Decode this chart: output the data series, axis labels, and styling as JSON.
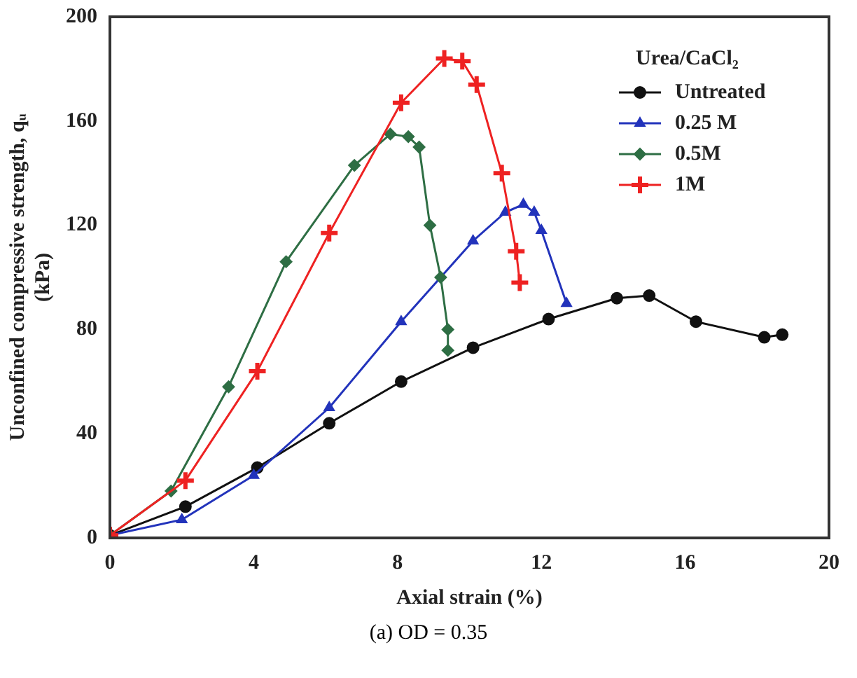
{
  "chart_data": {
    "type": "line",
    "xlabel": "Axial strain (%)",
    "ylabel": "Unconfined compressive strength, qᵤ (kPa)",
    "legend_title": "Urea/CaCl₂",
    "legend": "top right",
    "grid": false,
    "xlim": [
      0,
      20
    ],
    "xticks": [
      0,
      4,
      8,
      12,
      16,
      20
    ],
    "ylim": [
      0,
      200
    ],
    "yticks": [
      0,
      40,
      80,
      120,
      160,
      200
    ],
    "annotations": [
      "(a) OD = 0.35"
    ],
    "series": [
      {
        "name": "Untreated",
        "color": "#111111",
        "marker": "circle",
        "x": [
          0,
          2.1,
          4.1,
          6.1,
          8.1,
          10.1,
          12.2,
          14.1,
          15,
          16.3,
          18.2,
          18.7
        ],
        "values": [
          1,
          12,
          27,
          44,
          60,
          73,
          84,
          92,
          93,
          83,
          77,
          78
        ]
      },
      {
        "name": "0.25 M",
        "color": "#2233bb",
        "marker": "triangle",
        "x": [
          0,
          2,
          4,
          6.1,
          8.1,
          10.1,
          11,
          11.5,
          11.8,
          12,
          12.7
        ],
        "values": [
          1,
          7,
          24,
          50,
          83,
          114,
          125,
          128,
          125,
          118,
          90
        ]
      },
      {
        "name": "0.5M",
        "color": "#2e6e44",
        "marker": "diamond",
        "x": [
          0,
          1.7,
          3.3,
          4.9,
          6.8,
          7.8,
          8.3,
          8.6,
          8.9,
          9.2,
          9.4,
          9.4
        ],
        "values": [
          1,
          18,
          58,
          106,
          143,
          155,
          154,
          150,
          120,
          100,
          80,
          72
        ]
      },
      {
        "name": "1M",
        "color": "#ee2222",
        "marker": "cross",
        "x": [
          0,
          2.1,
          4.1,
          6.1,
          8.1,
          9.3,
          9.8,
          10.2,
          10.9,
          11.3,
          11.4
        ],
        "values": [
          1,
          22,
          64,
          117,
          167,
          184,
          183,
          174,
          140,
          110,
          98
        ]
      }
    ]
  }
}
